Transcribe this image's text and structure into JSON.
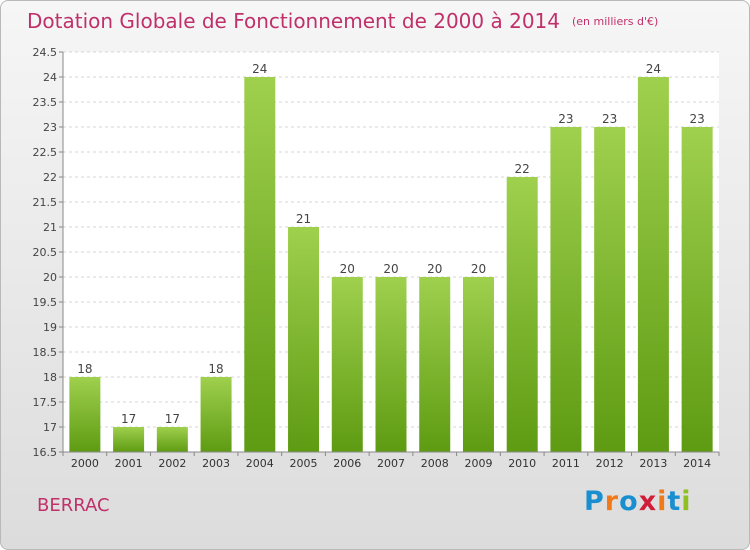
{
  "page": {
    "title": "Dotation Globale de Fonctionnement de 2000 à 2014",
    "unit": "(en milliers d'€)",
    "commune": "BERRAC",
    "logo_text": "Proxiti",
    "colors": {
      "title": "#c0306a",
      "bar_top": "#9fd04e",
      "bar_bottom": "#5e9b12",
      "logo_letters": [
        "#1a8fd0",
        "#f07a1a",
        "#1a8fd0",
        "#d11d3a",
        "#f07a1a",
        "#1a8fd0",
        "#8fbf20"
      ]
    }
  },
  "chart_data": {
    "type": "bar",
    "categories": [
      "2000",
      "2001",
      "2002",
      "2003",
      "2004",
      "2005",
      "2006",
      "2007",
      "2008",
      "2009",
      "2010",
      "2011",
      "2012",
      "2013",
      "2014"
    ],
    "values": [
      18,
      17,
      17,
      18,
      24,
      21,
      20,
      20,
      20,
      20,
      22,
      23,
      23,
      24,
      23
    ],
    "data_labels": [
      "18",
      "17",
      "17",
      "18",
      "24",
      "21",
      "20",
      "20",
      "20",
      "20",
      "22",
      "23",
      "23",
      "24",
      "23"
    ],
    "ylim": [
      16.5,
      24.5
    ],
    "yticks": [
      "16.5",
      "17",
      "17.5",
      "18",
      "18.5",
      "19",
      "19.5",
      "20",
      "20.5",
      "21",
      "21.5",
      "22",
      "22.5",
      "23",
      "23.5",
      "24",
      "24.5"
    ],
    "grid": true,
    "xlabel": "",
    "ylabel": ""
  }
}
